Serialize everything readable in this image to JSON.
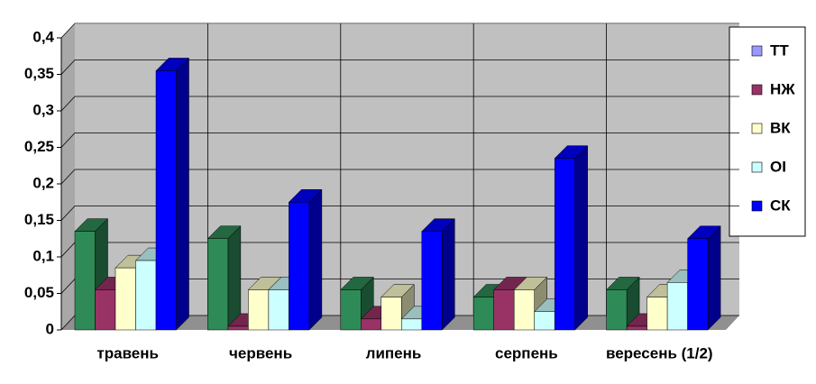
{
  "chart_data": {
    "type": "bar3d",
    "categories": [
      "травень",
      "червень",
      "липень",
      "серпень",
      "вересень (1/2)"
    ],
    "series": [
      {
        "name": "ТТ",
        "color": "#2e8b57",
        "legend_color": "#9999ff",
        "values": [
          0.135,
          0.125,
          0.055,
          0.045,
          0.055
        ]
      },
      {
        "name": "НЖ",
        "color": "#993366",
        "values": [
          0.055,
          0.005,
          0.015,
          0.055,
          0.005
        ]
      },
      {
        "name": "ВК",
        "color": "#ffffcc",
        "values": [
          0.085,
          0.055,
          0.045,
          0.055,
          0.045
        ]
      },
      {
        "name": "ОІ",
        "color": "#ccffff",
        "values": [
          0.095,
          0.055,
          0.015,
          0.025,
          0.065
        ]
      },
      {
        "name": "СК",
        "color": "#0000ff",
        "values": [
          0.355,
          0.175,
          0.135,
          0.235,
          0.125
        ]
      }
    ],
    "ylim": [
      0,
      0.4
    ],
    "yticks": [
      0,
      {
        "value": 0.05,
        "label": "0,05"
      },
      {
        "value": 0.1,
        "label": "0,1"
      },
      {
        "value": 0.15,
        "label": "0,15"
      },
      {
        "value": 0.2,
        "label": "0,2"
      },
      {
        "value": 0.25,
        "label": "0,25"
      },
      {
        "value": 0.3,
        "label": "0,3"
      },
      {
        "value": 0.35,
        "label": "0,35"
      },
      {
        "value": 0.4,
        "label": "0,4"
      }
    ],
    "grid": true,
    "legend": "right"
  }
}
